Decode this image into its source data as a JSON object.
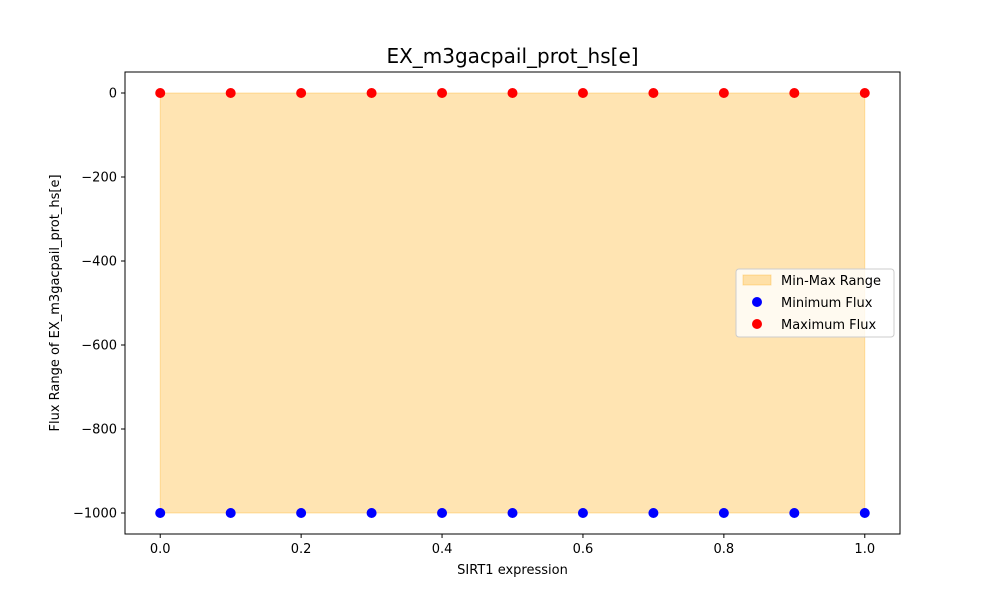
{
  "chart_data": {
    "type": "scatter",
    "title": "EX_m3gacpail_prot_hs[e]",
    "xlabel": "SIRT1 expression",
    "ylabel": "Flux Range of EX_m3gacpail_prot_hs[e]",
    "x": [
      0.0,
      0.1,
      0.2,
      0.3,
      0.4,
      0.5,
      0.6,
      0.7,
      0.8,
      0.9,
      1.0
    ],
    "x_ticks": [
      0.0,
      0.2,
      0.4,
      0.6,
      0.8,
      1.0
    ],
    "x_tick_labels": [
      "0.0",
      "0.2",
      "0.4",
      "0.6",
      "0.8",
      "1.0"
    ],
    "y_ticks": [
      0,
      -200,
      -400,
      -600,
      -800,
      -1000
    ],
    "y_tick_labels": [
      "0",
      "−200",
      "−400",
      "−600",
      "−800",
      "−1000"
    ],
    "xlim": [
      -0.05,
      1.05
    ],
    "ylim": [
      -1050,
      50
    ],
    "fill": {
      "name": "Min-Max Range",
      "lower": [
        -1000,
        -1000,
        -1000,
        -1000,
        -1000,
        -1000,
        -1000,
        -1000,
        -1000,
        -1000,
        -1000
      ],
      "upper": [
        0,
        0,
        0,
        0,
        0,
        0,
        0,
        0,
        0,
        0,
        0
      ],
      "color": "#ffa500",
      "opacity": 0.3
    },
    "series": [
      {
        "name": "Minimum Flux",
        "color": "#0000ff",
        "values": [
          -1000,
          -1000,
          -1000,
          -1000,
          -1000,
          -1000,
          -1000,
          -1000,
          -1000,
          -1000,
          -1000
        ]
      },
      {
        "name": "Maximum Flux",
        "color": "#ff0000",
        "values": [
          0,
          0,
          0,
          0,
          0,
          0,
          0,
          0,
          0,
          0,
          0
        ]
      }
    ],
    "legend_position": "center-right",
    "grid": false
  }
}
